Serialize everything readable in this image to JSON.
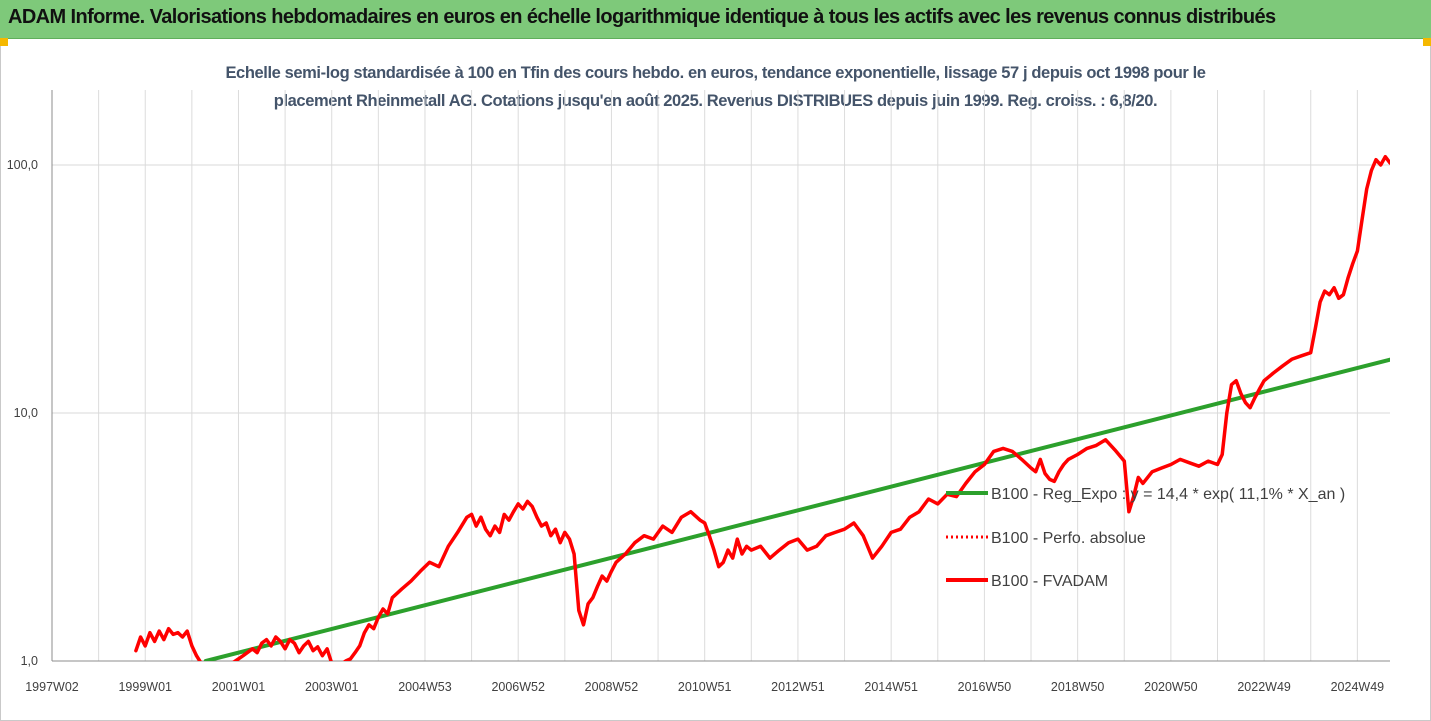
{
  "header": {
    "title": "ADAM Informe. Valorisations hebdomadaires en euros en échelle logarithmique identique à tous les actifs avec les revenus connus distribués"
  },
  "colors": {
    "header_bg": "#7ec97a",
    "corner_marker": "#f5b800",
    "fvadam_line": "#ff0000",
    "regression_line": "#2ca02c",
    "subtitle_text": "#44546a"
  },
  "chart_data": {
    "type": "line",
    "title_line1": "Echelle semi-log standardisée à 100 en Tfin des cours hebdo. en euros, tendance exponentielle, lissage 57 j depuis oct 1998 pour le",
    "title_line2": "placement Rheinmetall AG. Cotations jusqu'en août 2025. Revenus DISTRIBUES depuis juin 1999. Reg. croiss. : 6,8/20.",
    "y_scale": "log",
    "ylim": [
      1,
      200
    ],
    "y_ticks": [
      {
        "value": 1,
        "label": "1,0"
      },
      {
        "value": 10,
        "label": "10,0"
      },
      {
        "value": 100,
        "label": "100,0"
      }
    ],
    "xlim": [
      1997.0,
      2025.7
    ],
    "x_ticks": [
      {
        "value": 1997.0,
        "label": "1997W02"
      },
      {
        "value": 1999.0,
        "label": "1999W01"
      },
      {
        "value": 2001.0,
        "label": "2001W01"
      },
      {
        "value": 2003.0,
        "label": "2003W01"
      },
      {
        "value": 2005.0,
        "label": "2004W53"
      },
      {
        "value": 2007.0,
        "label": "2006W52"
      },
      {
        "value": 2009.0,
        "label": "2008W52"
      },
      {
        "value": 2011.0,
        "label": "2010W51"
      },
      {
        "value": 2013.0,
        "label": "2012W51"
      },
      {
        "value": 2015.0,
        "label": "2014W51"
      },
      {
        "value": 2017.0,
        "label": "2016W50"
      },
      {
        "value": 2019.0,
        "label": "2018W50"
      },
      {
        "value": 2021.0,
        "label": "2020W50"
      },
      {
        "value": 2023.0,
        "label": "2022W49"
      },
      {
        "value": 2025.0,
        "label": "2024W49"
      }
    ],
    "grid": "vertical and horizontal",
    "legend_position": "right",
    "series": [
      {
        "name": "B100 - Reg_Expo : y = 14,4 * exp( 11,1% *  X_an )",
        "style": "solid",
        "color": "#2ca02c",
        "x": [
          2000.3,
          2025.7
        ],
        "y": [
          1.0,
          16.4
        ]
      },
      {
        "name": "B100 - Perfo. absolue",
        "style": "dotted",
        "color": "#ff0000",
        "x": [],
        "y": []
      },
      {
        "name": "B100 - FVADAM",
        "style": "solid",
        "color": "#ff0000",
        "x": [
          1998.8,
          1998.9,
          1999.0,
          1999.1,
          1999.2,
          1999.3,
          1999.4,
          1999.5,
          1999.6,
          1999.7,
          1999.8,
          1999.9,
          2000.0,
          2000.1,
          2000.2,
          2000.3,
          2000.5,
          2000.7,
          2000.9,
          2001.1,
          2001.3,
          2001.4,
          2001.5,
          2001.6,
          2001.7,
          2001.8,
          2001.9,
          2002.0,
          2002.1,
          2002.2,
          2002.3,
          2002.4,
          2002.5,
          2002.6,
          2002.7,
          2002.8,
          2002.9,
          2003.0,
          2003.1,
          2003.2,
          2003.3,
          2003.4,
          2003.5,
          2003.6,
          2003.7,
          2003.8,
          2003.9,
          2004.0,
          2004.1,
          2004.2,
          2004.3,
          2004.5,
          2004.7,
          2004.9,
          2005.1,
          2005.3,
          2005.5,
          2005.7,
          2005.9,
          2006.0,
          2006.1,
          2006.2,
          2006.3,
          2006.4,
          2006.5,
          2006.6,
          2006.7,
          2006.8,
          2006.9,
          2007.0,
          2007.1,
          2007.2,
          2007.3,
          2007.4,
          2007.5,
          2007.6,
          2007.7,
          2007.8,
          2007.9,
          2008.0,
          2008.1,
          2008.2,
          2008.3,
          2008.4,
          2008.5,
          2008.6,
          2008.7,
          2008.8,
          2008.9,
          2009.0,
          2009.1,
          2009.3,
          2009.5,
          2009.7,
          2009.9,
          2010.1,
          2010.3,
          2010.5,
          2010.7,
          2010.9,
          2011.0,
          2011.1,
          2011.2,
          2011.3,
          2011.4,
          2011.5,
          2011.6,
          2011.7,
          2011.8,
          2011.9,
          2012.0,
          2012.2,
          2012.4,
          2012.6,
          2012.8,
          2013.0,
          2013.2,
          2013.4,
          2013.6,
          2013.8,
          2014.0,
          2014.2,
          2014.4,
          2014.6,
          2014.8,
          2015.0,
          2015.2,
          2015.4,
          2015.6,
          2015.8,
          2016.0,
          2016.2,
          2016.4,
          2016.6,
          2016.8,
          2017.0,
          2017.2,
          2017.4,
          2017.6,
          2017.8,
          2018.0,
          2018.1,
          2018.2,
          2018.3,
          2018.4,
          2018.5,
          2018.6,
          2018.7,
          2018.8,
          2019.0,
          2019.2,
          2019.4,
          2019.6,
          2019.8,
          2020.0,
          2020.1,
          2020.2,
          2020.3,
          2020.4,
          2020.6,
          2020.8,
          2021.0,
          2021.2,
          2021.4,
          2021.6,
          2021.8,
          2022.0,
          2022.1,
          2022.2,
          2022.3,
          2022.4,
          2022.5,
          2022.6,
          2022.7,
          2022.8,
          2022.9,
          2023.0,
          2023.2,
          2023.4,
          2023.6,
          2023.8,
          2024.0,
          2024.1,
          2024.2,
          2024.3,
          2024.4,
          2024.5,
          2024.6,
          2024.7,
          2024.8,
          2024.9,
          2025.0,
          2025.1,
          2025.2,
          2025.3,
          2025.4,
          2025.5,
          2025.6,
          2025.7
        ],
        "y": [
          1.1,
          1.25,
          1.15,
          1.3,
          1.2,
          1.32,
          1.22,
          1.35,
          1.28,
          1.3,
          1.25,
          1.32,
          1.15,
          1.05,
          0.98,
          0.95,
          0.94,
          0.96,
          0.99,
          1.05,
          1.12,
          1.08,
          1.18,
          1.22,
          1.15,
          1.25,
          1.2,
          1.12,
          1.22,
          1.18,
          1.08,
          1.15,
          1.2,
          1.1,
          1.14,
          1.05,
          1.12,
          0.98,
          0.95,
          0.97,
          1.0,
          1.02,
          1.08,
          1.15,
          1.3,
          1.4,
          1.35,
          1.5,
          1.62,
          1.55,
          1.8,
          1.95,
          2.1,
          2.3,
          2.5,
          2.4,
          2.9,
          3.3,
          3.8,
          3.9,
          3.5,
          3.8,
          3.4,
          3.2,
          3.5,
          3.3,
          3.9,
          3.7,
          4.0,
          4.3,
          4.1,
          4.4,
          4.2,
          3.8,
          3.5,
          3.6,
          3.2,
          3.4,
          3.0,
          3.3,
          3.1,
          2.7,
          1.6,
          1.4,
          1.7,
          1.8,
          2.0,
          2.2,
          2.1,
          2.3,
          2.5,
          2.7,
          3.0,
          3.2,
          3.1,
          3.5,
          3.3,
          3.8,
          4.0,
          3.7,
          3.6,
          3.2,
          2.8,
          2.4,
          2.5,
          2.8,
          2.6,
          3.1,
          2.7,
          2.9,
          2.8,
          2.9,
          2.6,
          2.8,
          3.0,
          3.1,
          2.8,
          2.9,
          3.2,
          3.3,
          3.4,
          3.6,
          3.2,
          2.6,
          2.9,
          3.3,
          3.4,
          3.8,
          4.0,
          4.5,
          4.3,
          4.7,
          4.6,
          5.2,
          5.8,
          6.2,
          7.0,
          7.2,
          7.0,
          6.5,
          6.0,
          5.8,
          6.5,
          5.7,
          5.4,
          5.3,
          5.8,
          6.2,
          6.5,
          6.8,
          7.2,
          7.4,
          7.8,
          7.1,
          6.4,
          4.0,
          4.6,
          5.5,
          5.2,
          5.8,
          6.0,
          6.2,
          6.5,
          6.3,
          6.1,
          6.4,
          6.2,
          6.8,
          10.0,
          13.0,
          13.5,
          12.0,
          11.0,
          10.5,
          11.5,
          12.5,
          13.5,
          14.5,
          15.5,
          16.5,
          17.0,
          17.5,
          22.0,
          28.0,
          31.0,
          30.0,
          32.0,
          29.0,
          30.0,
          35.0,
          40.0,
          45.0,
          60.0,
          80.0,
          95.0,
          105.0,
          100.0,
          108.0,
          102.0
        ]
      }
    ]
  }
}
